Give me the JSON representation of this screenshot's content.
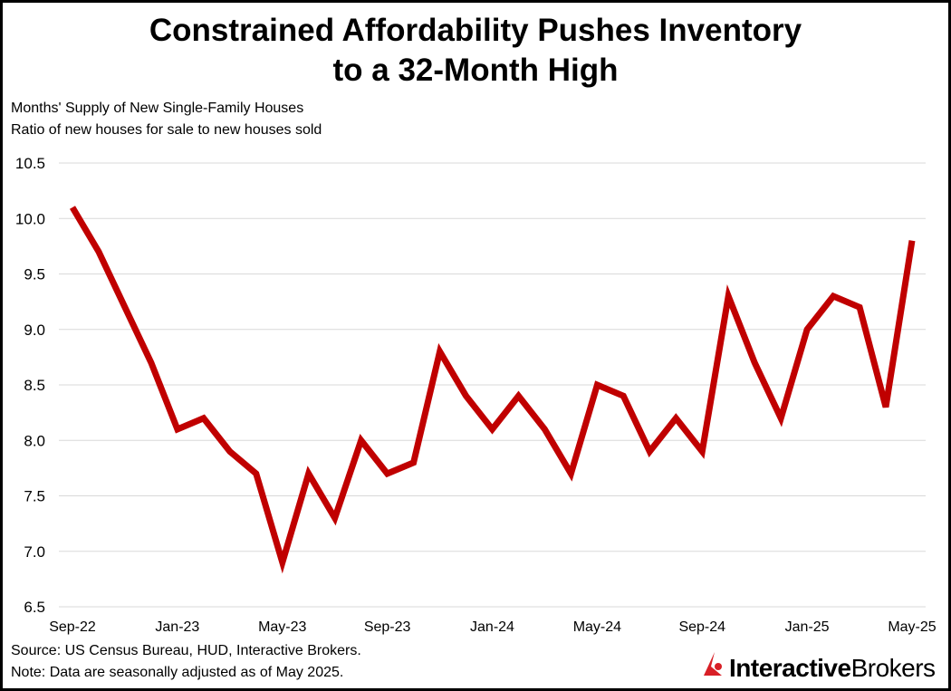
{
  "chart_data": {
    "type": "line",
    "title": "Constrained Affordability Pushes Inventory to a 32-Month High",
    "title_lines": [
      "Constrained Affordability Pushes Inventory",
      "to a 32-Month High"
    ],
    "subtitle_lines": [
      "Months' Supply of New Single-Family Houses",
      "Ratio of new houses for sale to new houses sold"
    ],
    "x": [
      "Sep-22",
      "Oct-22",
      "Nov-22",
      "Dec-22",
      "Jan-23",
      "Feb-23",
      "Mar-23",
      "Apr-23",
      "May-23",
      "Jun-23",
      "Jul-23",
      "Aug-23",
      "Sep-23",
      "Oct-23",
      "Nov-23",
      "Dec-23",
      "Jan-24",
      "Feb-24",
      "Mar-24",
      "Apr-24",
      "May-24",
      "Jun-24",
      "Jul-24",
      "Aug-24",
      "Sep-24",
      "Oct-24",
      "Nov-24",
      "Dec-24",
      "Jan-25",
      "Feb-25",
      "Mar-25",
      "Apr-25",
      "May-25"
    ],
    "xtick_labels": [
      "Sep-22",
      "Jan-23",
      "May-23",
      "Sep-23",
      "Jan-24",
      "May-24",
      "Sep-24",
      "Jan-25",
      "May-25"
    ],
    "series": [
      {
        "values": [
          10.1,
          9.7,
          9.2,
          8.7,
          8.1,
          8.2,
          7.9,
          7.7,
          6.9,
          7.7,
          7.3,
          8.0,
          7.7,
          7.8,
          8.8,
          8.4,
          8.1,
          8.4,
          8.1,
          7.7,
          8.5,
          8.4,
          7.9,
          8.2,
          7.9,
          9.3,
          8.7,
          8.2,
          9.0,
          9.3,
          9.2,
          8.3,
          9.8
        ],
        "color": "#c00000"
      }
    ],
    "ylim": [
      6.5,
      10.5
    ],
    "yticks": [
      "6.5",
      "7.0",
      "7.5",
      "8.0",
      "8.5",
      "9.0",
      "9.5",
      "10.0",
      "10.5"
    ],
    "grid": true,
    "legend": "none"
  },
  "footer": {
    "source": "Source: US Census Bureau, HUD, Interactive Brokers.",
    "note": "Note: Data are seasonally adjusted as of May 2025.",
    "logo_text": "InteractiveBrokers",
    "logo_color": "#d81f26"
  }
}
